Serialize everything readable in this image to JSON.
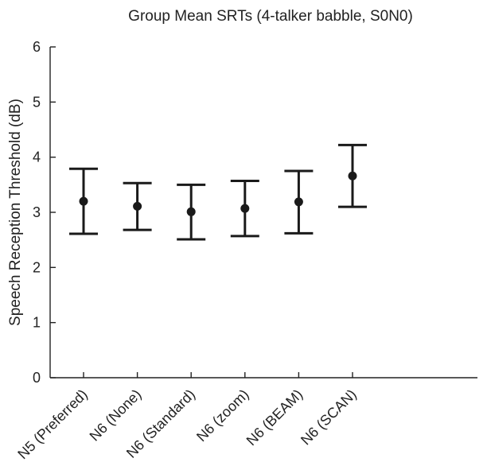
{
  "chart_data": {
    "type": "errorbar",
    "title": "Group Mean SRTs (4-talker babble, S0N0)",
    "xlabel": "",
    "ylabel": "Speech Reception Threshold (dB)",
    "ylim": [
      0,
      6
    ],
    "yticks": [
      0,
      1,
      2,
      3,
      4,
      5,
      6
    ],
    "grid": false,
    "categories": [
      "N5 (Preferred)",
      "N6 (None)",
      "N6 (Standard)",
      "N6 (zoom)",
      "N6 (BEAM)",
      "N6 (SCAN)"
    ],
    "series": [
      {
        "mean": [
          3.2,
          3.11,
          3.01,
          3.07,
          3.19,
          3.66
        ],
        "lower": [
          2.61,
          2.68,
          2.51,
          2.57,
          2.62,
          3.1
        ],
        "upper": [
          3.79,
          3.53,
          3.5,
          3.57,
          3.75,
          4.22
        ]
      }
    ]
  }
}
